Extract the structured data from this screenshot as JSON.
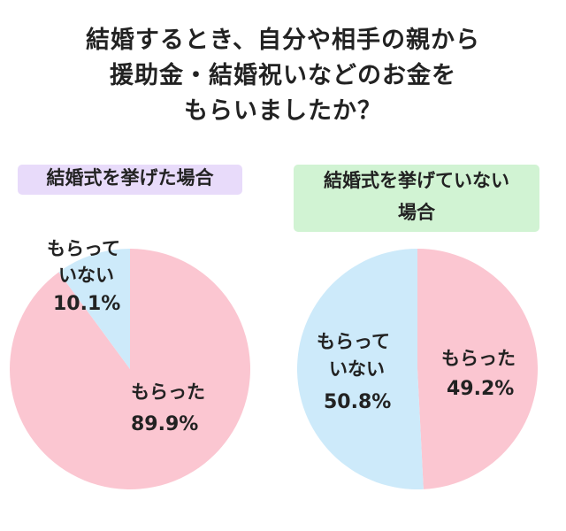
{
  "title": {
    "line1": "結婚するとき、自分や相手の親から",
    "line2": "援助金・結婚祝いなどのお金を",
    "line3": "もらいましたか？"
  },
  "colors": {
    "received": "#fbc6d1",
    "not_received": "#cdeafa",
    "tag_left_bg": "#e8dbfa",
    "tag_right_bg": "#d1f3d3"
  },
  "chart_data": [
    {
      "type": "pie",
      "title": "結婚式を挙げた場合",
      "slices": [
        {
          "label_line1": "もらった",
          "label_line2": "",
          "value": 89.9,
          "value_text": "89.9%",
          "color": "#fbc6d1"
        },
        {
          "label_line1": "もらって",
          "label_line2": "いない",
          "value": 10.1,
          "value_text": "10.1%",
          "color": "#cdeafa"
        }
      ]
    },
    {
      "type": "pie",
      "title_line1": "結婚式を挙げていない",
      "title_line2": "場合",
      "slices": [
        {
          "label_line1": "もらった",
          "label_line2": "",
          "value": 49.2,
          "value_text": "49.2%",
          "color": "#fbc6d1"
        },
        {
          "label_line1": "もらって",
          "label_line2": "いない",
          "value": 50.8,
          "value_text": "50.8%",
          "color": "#cdeafa"
        }
      ]
    }
  ]
}
